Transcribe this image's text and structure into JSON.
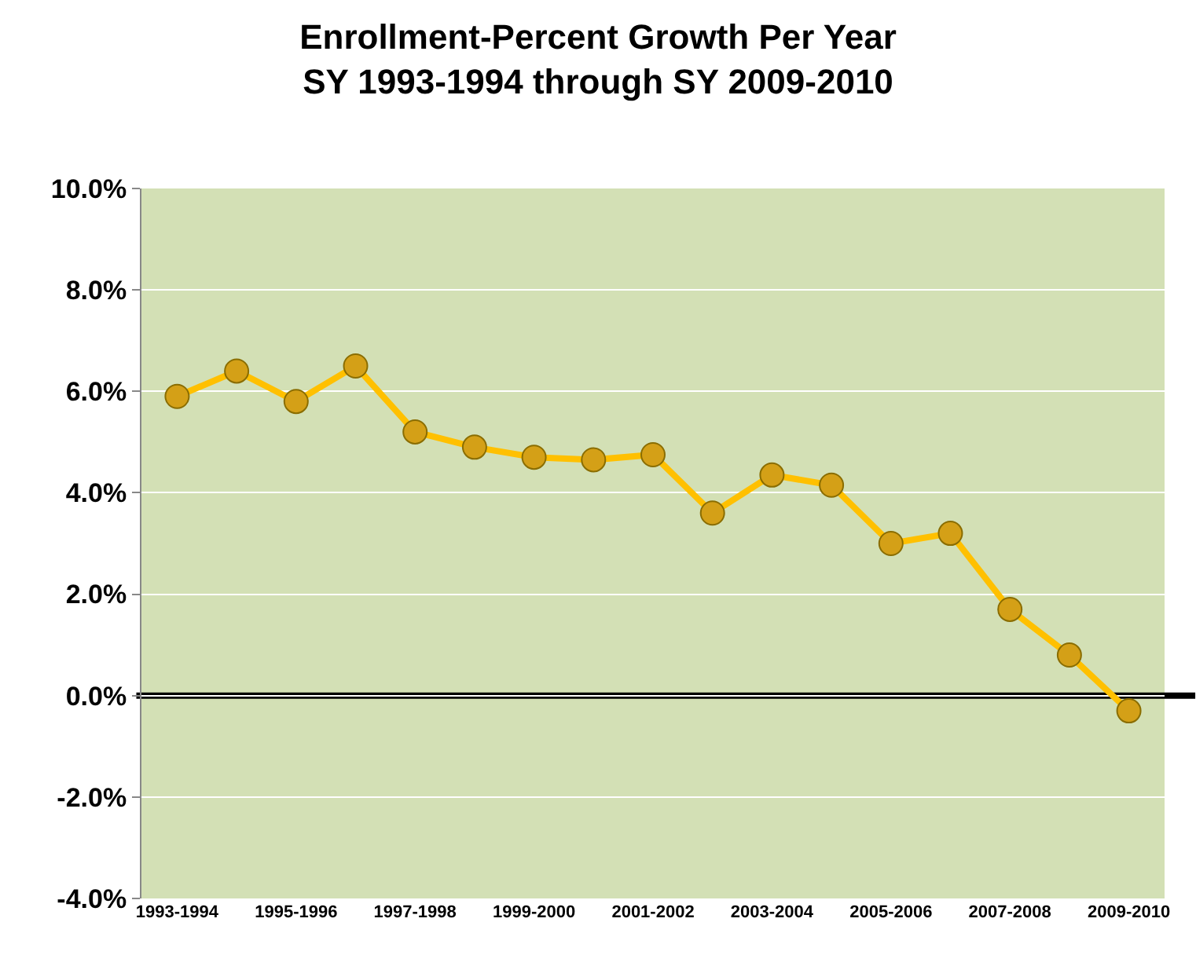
{
  "chart_data": {
    "type": "line",
    "title": "Enrollment-Percent Growth Per Year\nSY 1993-1994 through SY 2009-2010",
    "categories": [
      "1993-1994",
      null,
      "1995-1996",
      null,
      "1997-1998",
      null,
      "1999-2000",
      null,
      "2001-2002",
      null,
      "2003-2004",
      null,
      "2005-2006",
      null,
      "2007-2008",
      null,
      "2009-2010"
    ],
    "series": [
      {
        "color": "#ffc000",
        "values": [
          5.9,
          6.4,
          5.8,
          6.5,
          5.2,
          4.9,
          4.7,
          4.65,
          4.75,
          3.6,
          4.35,
          4.15,
          3.0,
          3.2,
          1.7,
          0.8,
          -0.3
        ]
      }
    ],
    "ylim": [
      -4,
      10
    ],
    "yticks": [
      {
        "value": -4,
        "label": "-4.0%"
      },
      {
        "value": -2,
        "label": "-2.0%"
      },
      {
        "value": 0,
        "label": "0.0%"
      },
      {
        "value": 2,
        "label": "2.0%"
      },
      {
        "value": 4,
        "label": "4.0%"
      },
      {
        "value": 6,
        "label": "6.0%"
      },
      {
        "value": 8,
        "label": "8.0%"
      },
      {
        "value": 10,
        "label": "10.0%"
      }
    ],
    "ref_lines": [
      {
        "axis": "y",
        "value": 0,
        "color": "#000000"
      }
    ],
    "grid": "y",
    "legend": false,
    "marker": "circle",
    "line_style": "solid"
  }
}
